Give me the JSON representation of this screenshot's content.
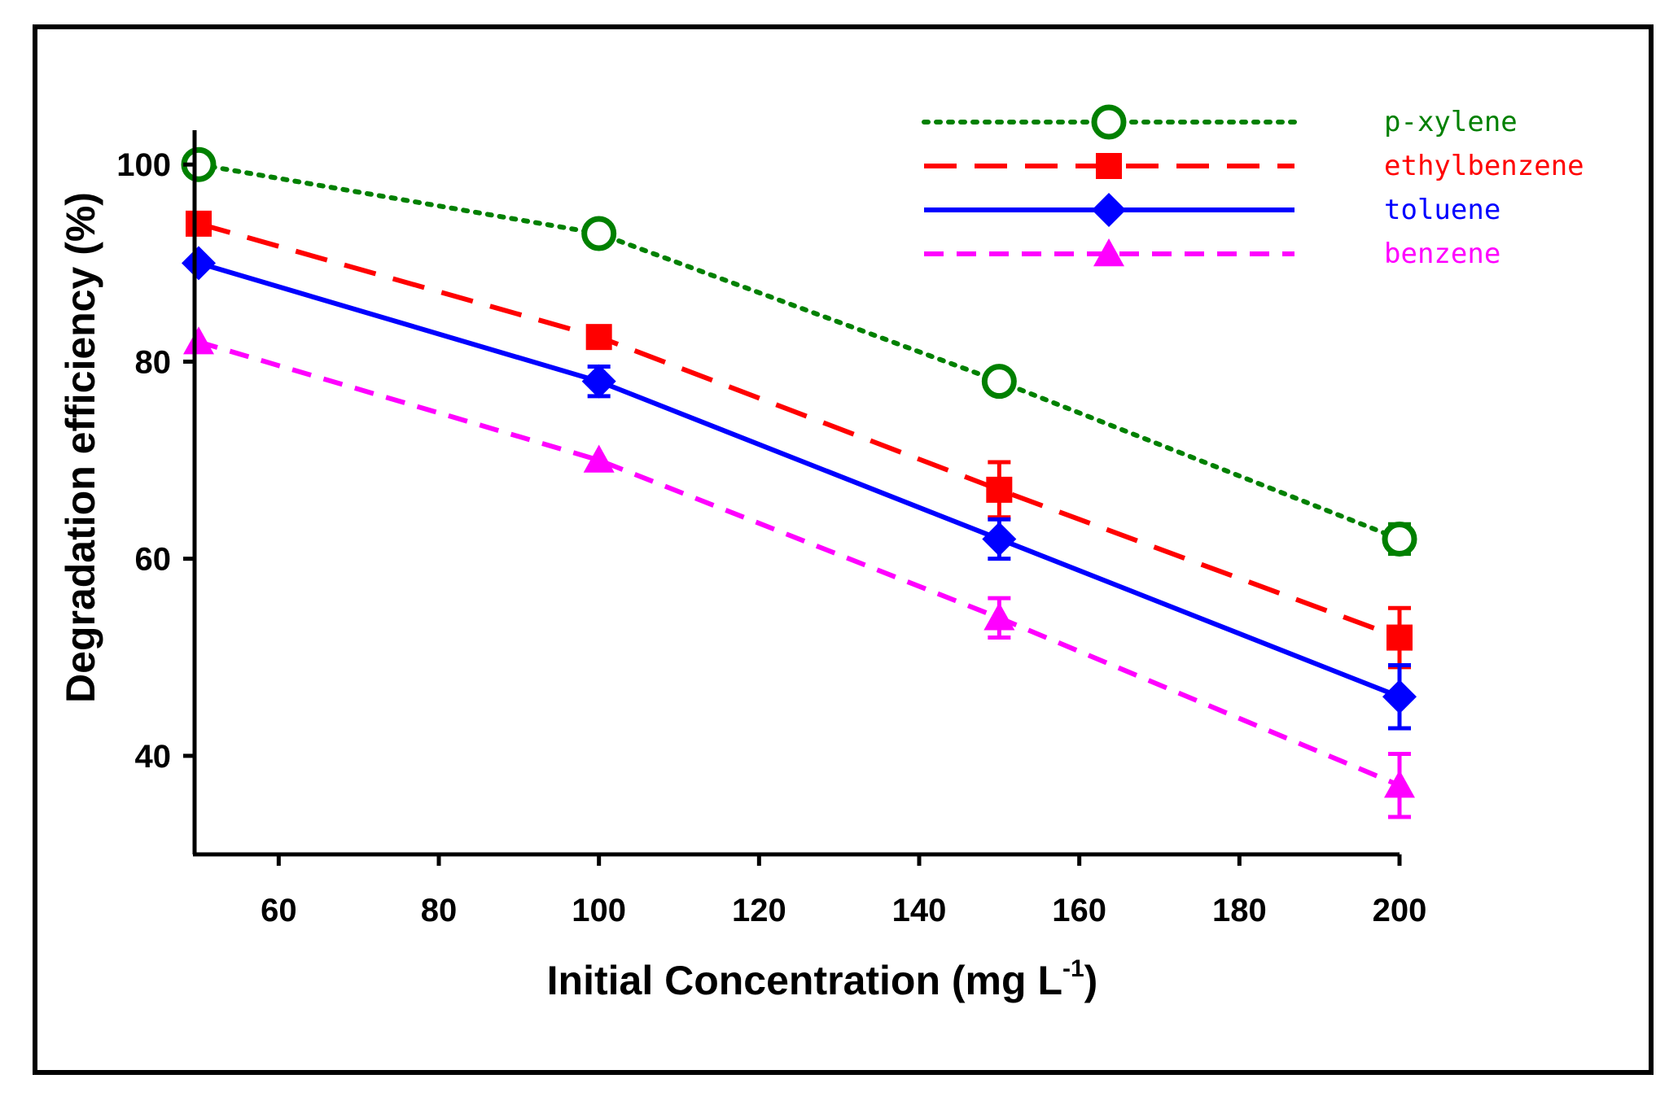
{
  "chart_data": {
    "type": "line",
    "xlabel": "Initial Concentration (mg L",
    "xlabel_superscript": "-1",
    "xlabel_close": ")",
    "ylabel": "Degradation efficiency (%)",
    "xlim": [
      50,
      200
    ],
    "ylim": [
      30,
      102
    ],
    "xticks": [
      60,
      80,
      100,
      120,
      140,
      160,
      180,
      200
    ],
    "yticks": [
      40,
      60,
      80,
      100
    ],
    "grid": false,
    "legend_position": "top-right",
    "x": [
      50,
      100,
      150,
      200
    ],
    "series": [
      {
        "name": "p-xylene",
        "values": [
          100,
          93,
          78,
          62
        ],
        "errors": [
          0,
          0,
          0,
          1.5
        ],
        "color": "#008000",
        "line_style": "dotted",
        "marker": "open-circle"
      },
      {
        "name": "ethylbenzene",
        "values": [
          94,
          82.5,
          67,
          52
        ],
        "errors": [
          0,
          0,
          2.8,
          3
        ],
        "color": "#ff0000",
        "line_style": "long-dash",
        "marker": "square"
      },
      {
        "name": "toluene",
        "values": [
          90,
          78,
          62,
          46
        ],
        "errors": [
          0,
          1.5,
          2,
          3.2
        ],
        "color": "#0000ff",
        "line_style": "solid",
        "marker": "diamond"
      },
      {
        "name": "benzene",
        "values": [
          82,
          70,
          54,
          37
        ],
        "errors": [
          0,
          0,
          2,
          3.2
        ],
        "color": "#ff00ff",
        "line_style": "short-dash",
        "marker": "triangle"
      }
    ]
  }
}
